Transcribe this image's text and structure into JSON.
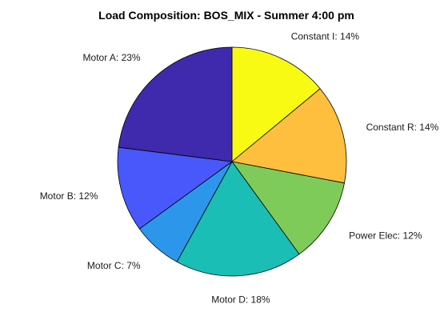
{
  "chart_data": {
    "type": "pie",
    "title": "Load Composition: BOS_MIX - Summer 4:00 pm",
    "slices": [
      {
        "name": "Constant I",
        "label": "Constant I: 14%",
        "value": 14,
        "color": "#f9fa14"
      },
      {
        "name": "Constant R",
        "label": "Constant R: 14%",
        "value": 14,
        "color": "#fdbf3d"
      },
      {
        "name": "Power Elec",
        "label": "Power Elec: 12%",
        "value": 12,
        "color": "#7fcb5a"
      },
      {
        "name": "Motor D",
        "label": "Motor D: 18%",
        "value": 18,
        "color": "#1abeb4"
      },
      {
        "name": "Motor C",
        "label": "Motor C: 7%",
        "value": 7,
        "color": "#2c96ea"
      },
      {
        "name": "Motor B",
        "label": "Motor B: 12%",
        "value": 12,
        "color": "#4858fb"
      },
      {
        "name": "Motor A",
        "label": "Motor A: 23%",
        "value": 23,
        "color": "#3f2aae"
      }
    ],
    "start_angle": "12 o'clock",
    "direction": "clockwise",
    "legend": "none"
  }
}
